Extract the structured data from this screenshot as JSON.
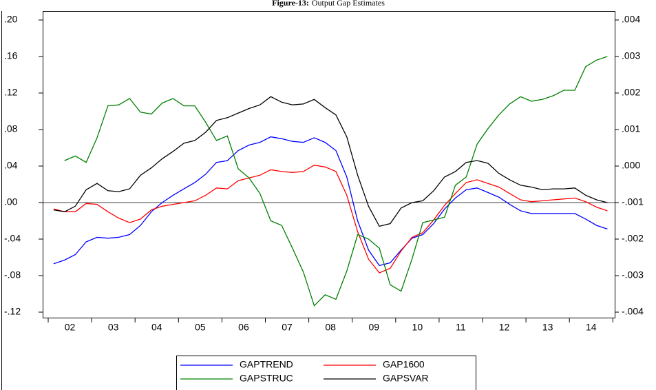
{
  "chart_data": {
    "type": "line",
    "title_label": "Figure-13:",
    "title": "Output Gap Estimates",
    "categories": [
      null,
      "02",
      null,
      null,
      null,
      "03",
      null,
      null,
      null,
      "04",
      null,
      null,
      null,
      "05",
      null,
      null,
      null,
      "06",
      null,
      null,
      null,
      "07",
      null,
      null,
      null,
      "08",
      null,
      null,
      null,
      "09",
      null,
      null,
      null,
      "10",
      null,
      null,
      null,
      "11",
      null,
      null,
      null,
      "12",
      null,
      null,
      null,
      "13",
      null,
      null,
      null,
      "14",
      null,
      null
    ],
    "ylim": [
      -0.12,
      0.2
    ],
    "yticks": [
      {
        "value": 0.2,
        "label": ".20"
      },
      {
        "value": 0.16,
        "label": ".16"
      },
      {
        "value": 0.12,
        "label": ".12"
      },
      {
        "value": 0.08,
        "label": ".08"
      },
      {
        "value": 0.04,
        "label": ".04"
      },
      {
        "value": 0,
        "label": ".00"
      },
      {
        "value": -0.04,
        "label": "-.04"
      },
      {
        "value": -0.08,
        "label": "-.08"
      },
      {
        "value": -0.12,
        "label": "-.12"
      }
    ],
    "y2lim": [
      -0.004,
      0.004
    ],
    "y2ticks": [
      {
        "value": 0.004,
        "label": ".004"
      },
      {
        "value": 0.003,
        "label": ".003"
      },
      {
        "value": 0.002,
        "label": ".002"
      },
      {
        "value": 0.001,
        "label": ".001"
      },
      {
        "value": 0,
        "label": ".000"
      },
      {
        "value": -0.001,
        "label": "-.001"
      },
      {
        "value": -0.002,
        "label": "-.002"
      },
      {
        "value": -0.003,
        "label": "-.003"
      },
      {
        "value": -0.004,
        "label": "-.004"
      }
    ],
    "series": [
      {
        "name": "GAPTREND",
        "color": "#0000ff",
        "values": [
          -0.067,
          -0.063,
          -0.057,
          -0.043,
          -0.038,
          -0.039,
          -0.038,
          -0.035,
          -0.025,
          -0.01,
          0.0,
          0.008,
          0.015,
          0.022,
          0.031,
          0.044,
          0.046,
          0.057,
          0.063,
          0.066,
          0.072,
          0.07,
          0.067,
          0.066,
          0.071,
          0.066,
          0.057,
          0.028,
          -0.02,
          -0.052,
          -0.069,
          -0.066,
          -0.052,
          -0.039,
          -0.035,
          -0.023,
          -0.007,
          0.005,
          0.014,
          0.016,
          0.011,
          0.006,
          -0.002,
          -0.009,
          -0.012,
          -0.012,
          -0.012,
          -0.012,
          -0.012,
          -0.018,
          -0.025,
          -0.029
        ]
      },
      {
        "name": "GAP1600",
        "color": "#ff0000",
        "values": [
          -0.007,
          -0.01,
          -0.01,
          -0.001,
          -0.002,
          -0.01,
          -0.017,
          -0.022,
          -0.018,
          -0.008,
          -0.004,
          -0.002,
          0.0,
          0.002,
          0.008,
          0.016,
          0.015,
          0.024,
          0.027,
          0.03,
          0.036,
          0.034,
          0.033,
          0.034,
          0.041,
          0.039,
          0.034,
          0.008,
          -0.032,
          -0.062,
          -0.077,
          -0.072,
          -0.053,
          -0.038,
          -0.033,
          -0.019,
          -0.003,
          0.01,
          0.022,
          0.025,
          0.021,
          0.017,
          0.01,
          0.003,
          0.001,
          0.002,
          0.003,
          0.004,
          0.005,
          0.001,
          -0.005,
          -0.009
        ]
      },
      {
        "name": "GAPSTRUC",
        "color": "#008000",
        "values": [
          null,
          0.046,
          0.051,
          0.044,
          0.071,
          0.106,
          0.107,
          0.114,
          0.099,
          0.097,
          0.109,
          0.114,
          0.106,
          0.106,
          0.088,
          0.068,
          0.073,
          0.037,
          0.027,
          0.01,
          -0.02,
          -0.025,
          -0.05,
          -0.076,
          -0.113,
          -0.101,
          -0.106,
          -0.075,
          -0.035,
          -0.04,
          -0.05,
          -0.09,
          -0.097,
          -0.062,
          -0.022,
          -0.019,
          -0.016,
          0.019,
          0.028,
          0.064,
          0.081,
          0.096,
          0.108,
          0.116,
          0.111,
          0.113,
          0.117,
          0.123,
          0.123,
          0.149,
          0.156,
          0.16
        ]
      },
      {
        "name": "GAPSVAR",
        "color": "#000000",
        "axis": "y2",
        "values": [
          -0.0012,
          -0.00125,
          -0.0011,
          -0.00065,
          -0.000475,
          -0.000675,
          -0.0007,
          -0.000625,
          -0.00025,
          -5e-05,
          0.0002,
          0.0004,
          0.000625,
          0.0007,
          0.000925,
          0.00125,
          0.001325,
          0.00145,
          0.001575,
          0.001675,
          0.0019,
          0.00175,
          0.001675,
          0.0017,
          0.001825,
          0.0016,
          0.0014,
          0.0008,
          -0.00025,
          -0.0011,
          -0.00165,
          -0.001575,
          -0.00115,
          -0.001,
          -0.00095,
          -0.000675,
          -0.0003,
          -0.00015,
          0.0001,
          0.00015,
          7.5e-05,
          -0.0002,
          -0.000375,
          -0.000525,
          -0.000575,
          -0.00065,
          -0.000625,
          -0.000625,
          -0.0006,
          -0.0008,
          -0.000925,
          -0.001
        ]
      }
    ]
  }
}
